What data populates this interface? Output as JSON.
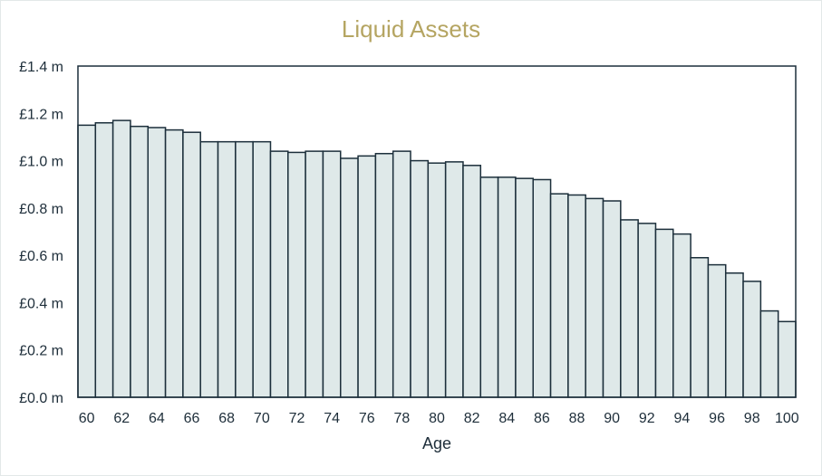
{
  "chart_data": {
    "type": "bar",
    "title": "Liquid Assets",
    "xlabel": "Age",
    "ylabel": "",
    "ylim": [
      0,
      1.4
    ],
    "y_ticks": [
      0.0,
      0.2,
      0.4,
      0.6,
      0.8,
      1.0,
      1.2,
      1.4
    ],
    "y_tick_labels": [
      "£0.0 m",
      "£0.2 m",
      "£0.4 m",
      "£0.6 m",
      "£0.8 m",
      "£1.0 m",
      "£1.2 m",
      "£1.4 m"
    ],
    "x_tick_labels": [
      "60",
      "62",
      "64",
      "66",
      "68",
      "70",
      "72",
      "74",
      "76",
      "78",
      "80",
      "82",
      "84",
      "86",
      "88",
      "90",
      "92",
      "94",
      "96",
      "98",
      "100"
    ],
    "grid": false,
    "legend": "none",
    "categories": [
      60,
      61,
      62,
      63,
      64,
      65,
      66,
      67,
      68,
      69,
      70,
      71,
      72,
      73,
      74,
      75,
      76,
      77,
      78,
      79,
      80,
      81,
      82,
      83,
      84,
      85,
      86,
      87,
      88,
      89,
      90,
      91,
      92,
      93,
      94,
      95,
      96,
      97,
      98,
      99,
      100
    ],
    "values": [
      1.15,
      1.16,
      1.17,
      1.145,
      1.14,
      1.13,
      1.12,
      1.08,
      1.08,
      1.08,
      1.08,
      1.04,
      1.035,
      1.04,
      1.04,
      1.01,
      1.02,
      1.03,
      1.04,
      1.0,
      0.99,
      0.995,
      0.98,
      0.93,
      0.93,
      0.925,
      0.92,
      0.86,
      0.855,
      0.84,
      0.83,
      0.75,
      0.735,
      0.71,
      0.69,
      0.59,
      0.56,
      0.525,
      0.49,
      0.365,
      0.32
    ],
    "colors": {
      "bar_fill": "#dfe9e9",
      "bar_stroke": "#1c2f3b",
      "title": "#b5a562",
      "text": "#1e2e3a"
    }
  }
}
